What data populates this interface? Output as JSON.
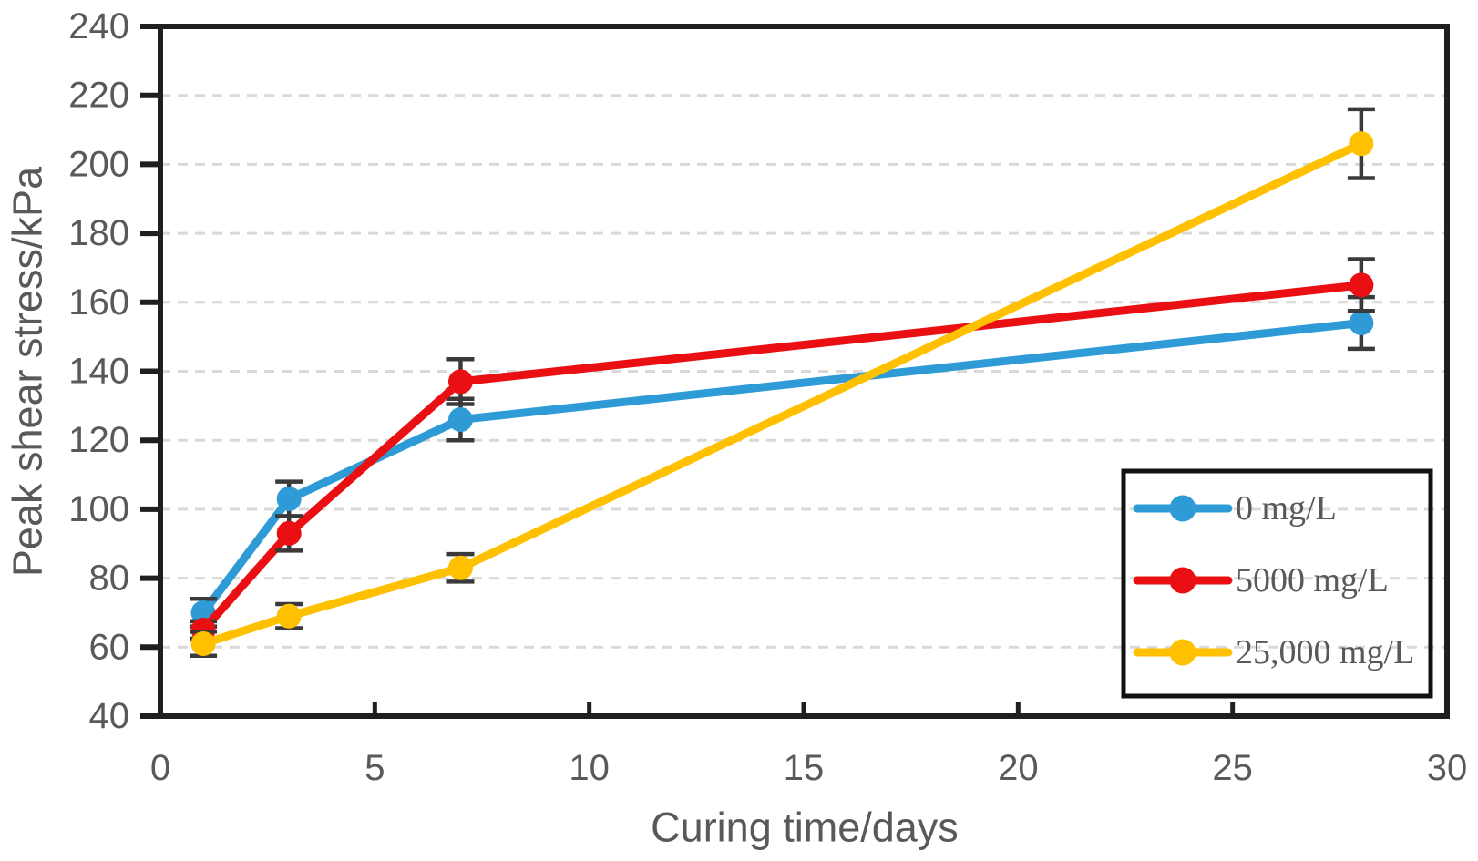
{
  "chart_data": {
    "type": "line",
    "title": "",
    "xlabel": "Curing time/days",
    "ylabel": "Peak shear stress/kPa",
    "xlim": [
      0,
      30
    ],
    "ylim": [
      40,
      240
    ],
    "xticks": [
      0,
      5,
      10,
      15,
      20,
      25,
      30
    ],
    "yticks": [
      40,
      60,
      80,
      100,
      120,
      140,
      160,
      180,
      200,
      220,
      240
    ],
    "grid": "horizontal-dashed",
    "legend_position": "inside-bottom-right",
    "x": [
      1,
      3,
      7,
      28
    ],
    "series": [
      {
        "name": "0 mg/L",
        "color": "#2e9bd6",
        "values": [
          70,
          103,
          126,
          154
        ],
        "errors": [
          4,
          5,
          6,
          7.5
        ]
      },
      {
        "name": "5000 mg/L",
        "color": "#e90f12",
        "values": [
          65,
          93,
          137,
          165
        ],
        "errors": [
          2.5,
          5,
          6.5,
          7.5
        ]
      },
      {
        "name": "25,000 mg/L",
        "color": "#ffc000",
        "values": [
          61,
          69,
          83,
          206
        ],
        "errors": [
          3.5,
          3.5,
          4,
          10
        ]
      }
    ],
    "colors": {
      "grid": "#d9d9d9",
      "axis": "#1f1f1f",
      "tick_text": "#595959",
      "error_bar": "#3a3a3a",
      "background": "#ffffff",
      "legend_border": "#111111"
    }
  }
}
